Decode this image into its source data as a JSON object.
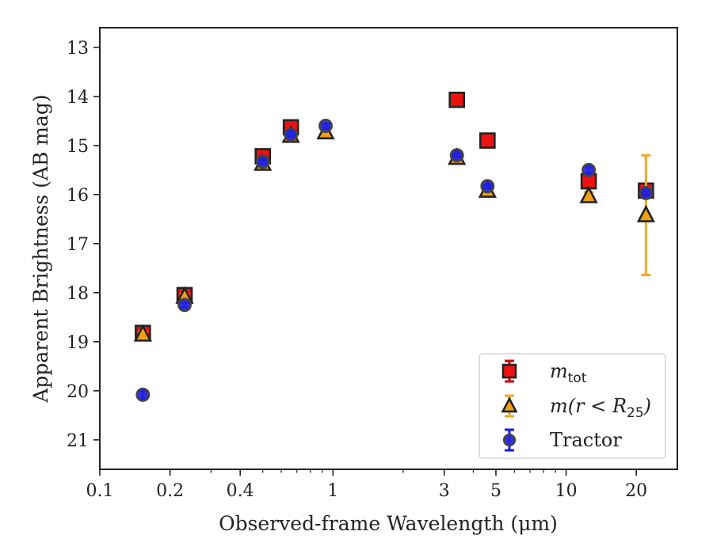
{
  "chart_data": {
    "type": "scatter",
    "xlabel": "Observed-frame Wavelength (μm)",
    "ylabel": "Apparent Brightness (AB mag)",
    "xscale": "log",
    "xlim": [
      0.1,
      30
    ],
    "ylim": [
      21.6,
      12.6
    ],
    "y_inverted": true,
    "grid": false,
    "x_ticks": [
      {
        "value": 0.1,
        "label": "0.1"
      },
      {
        "value": 0.2,
        "label": "0.2"
      },
      {
        "value": 0.4,
        "label": "0.4"
      },
      {
        "value": 1,
        "label": "1"
      },
      {
        "value": 3,
        "label": "3"
      },
      {
        "value": 5,
        "label": "5"
      },
      {
        "value": 10,
        "label": "10"
      },
      {
        "value": 20,
        "label": "20"
      }
    ],
    "y_ticks": [
      13,
      14,
      15,
      16,
      17,
      18,
      19,
      20,
      21
    ],
    "legend_placement": "lower-right",
    "series": [
      {
        "name_main": "m",
        "name_sub": "tot",
        "marker": "square",
        "color": "#ee1111",
        "edge_color": "#222222",
        "error_color": "#cc0000",
        "points": [
          {
            "x": 0.153,
            "y": 18.82,
            "yerr": 0.05
          },
          {
            "x": 0.231,
            "y": 18.05,
            "yerr": 0.05
          },
          {
            "x": 0.5,
            "y": 15.22,
            "yerr": 0.04
          },
          {
            "x": 0.66,
            "y": 14.63,
            "yerr": 0.04
          },
          {
            "x": 3.4,
            "y": 14.07,
            "yerr": 0.03
          },
          {
            "x": 4.6,
            "y": 14.9,
            "yerr": 0.03
          },
          {
            "x": 12.5,
            "y": 15.73,
            "yerr": 0.08
          },
          {
            "x": 22.0,
            "y": 15.92,
            "yerr": 0.1
          }
        ]
      },
      {
        "name_main": "m(r < R",
        "name_sub": "25",
        "name_end": ")",
        "marker": "triangle",
        "color": "#f0a010",
        "edge_color": "#222222",
        "error_color": "#f0a820",
        "points": [
          {
            "x": 0.153,
            "y": 18.85,
            "yerr": 0.05
          },
          {
            "x": 0.231,
            "y": 18.08,
            "yerr": 0.05
          },
          {
            "x": 0.5,
            "y": 15.37,
            "yerr": 0.04
          },
          {
            "x": 0.66,
            "y": 14.8,
            "yerr": 0.04
          },
          {
            "x": 0.93,
            "y": 14.73,
            "yerr": 0.04
          },
          {
            "x": 3.4,
            "y": 15.25,
            "yerr": 0.03
          },
          {
            "x": 4.6,
            "y": 15.92,
            "yerr": 0.03
          },
          {
            "x": 12.5,
            "y": 16.03,
            "yerr": 0.08
          },
          {
            "x": 22.0,
            "y": 16.42,
            "yerr": 1.22
          }
        ]
      },
      {
        "name_main": "Tractor",
        "marker": "circle",
        "color": "#2222dd",
        "edge_color": "#444444",
        "error_color": "#1a1aff",
        "points": [
          {
            "x": 0.153,
            "y": 20.08,
            "yerr": 0.08
          },
          {
            "x": 0.231,
            "y": 18.25,
            "yerr": 0.05
          },
          {
            "x": 0.5,
            "y": 15.33,
            "yerr": 0.04
          },
          {
            "x": 0.66,
            "y": 14.78,
            "yerr": 0.04
          },
          {
            "x": 0.93,
            "y": 14.6,
            "yerr": 0.04
          },
          {
            "x": 3.4,
            "y": 15.2,
            "yerr": 0.03
          },
          {
            "x": 4.6,
            "y": 15.83,
            "yerr": 0.03
          },
          {
            "x": 12.5,
            "y": 15.5,
            "yerr": 0.06
          },
          {
            "x": 22.0,
            "y": 15.97,
            "yerr": 0.06
          }
        ]
      }
    ]
  }
}
